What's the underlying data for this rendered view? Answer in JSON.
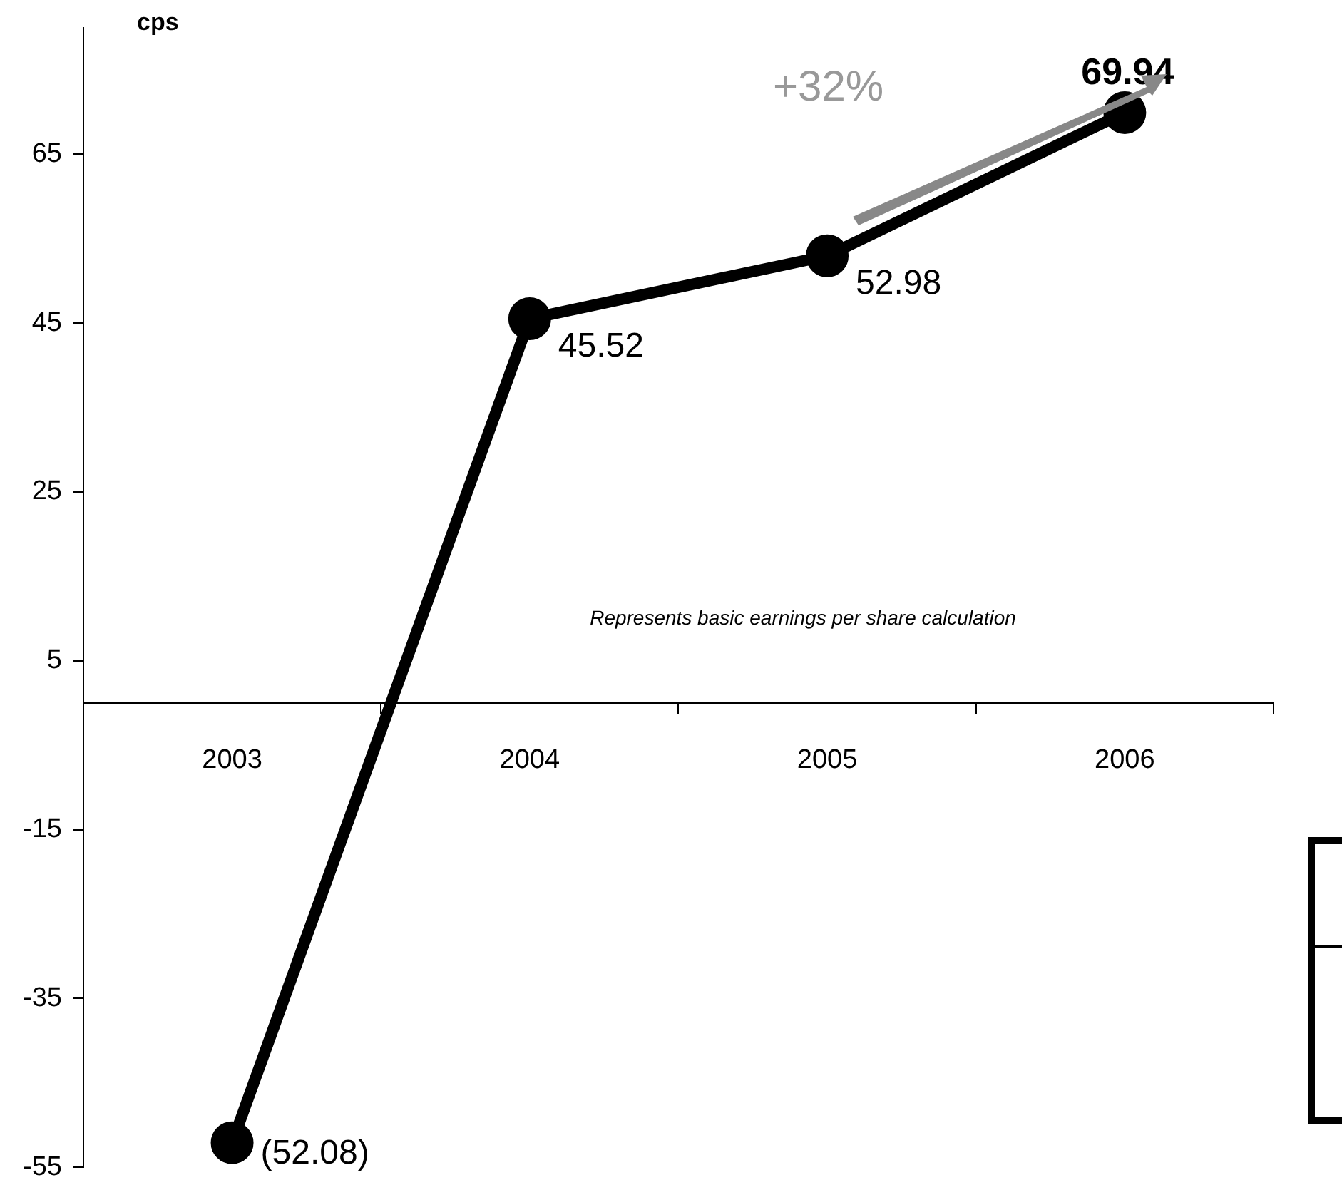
{
  "chart_data": {
    "type": "line",
    "ylabel": "cps",
    "categories": [
      "2003",
      "2004",
      "2005",
      "2006"
    ],
    "series": [
      {
        "color": "#000000",
        "values": [
          -52.08,
          45.52,
          52.98,
          69.94
        ],
        "value_labels": [
          "(52.08)",
          "45.52",
          "52.98",
          "69.94"
        ]
      }
    ],
    "ylim": [
      -55,
      80
    ],
    "yticks": [
      -55,
      -35,
      -15,
      5,
      25,
      45,
      65
    ],
    "grid": false,
    "legend": false,
    "marker": "circle",
    "line_style": "solid",
    "annotations": [
      "+32%",
      "Represents basic earnings per share calculation"
    ]
  }
}
